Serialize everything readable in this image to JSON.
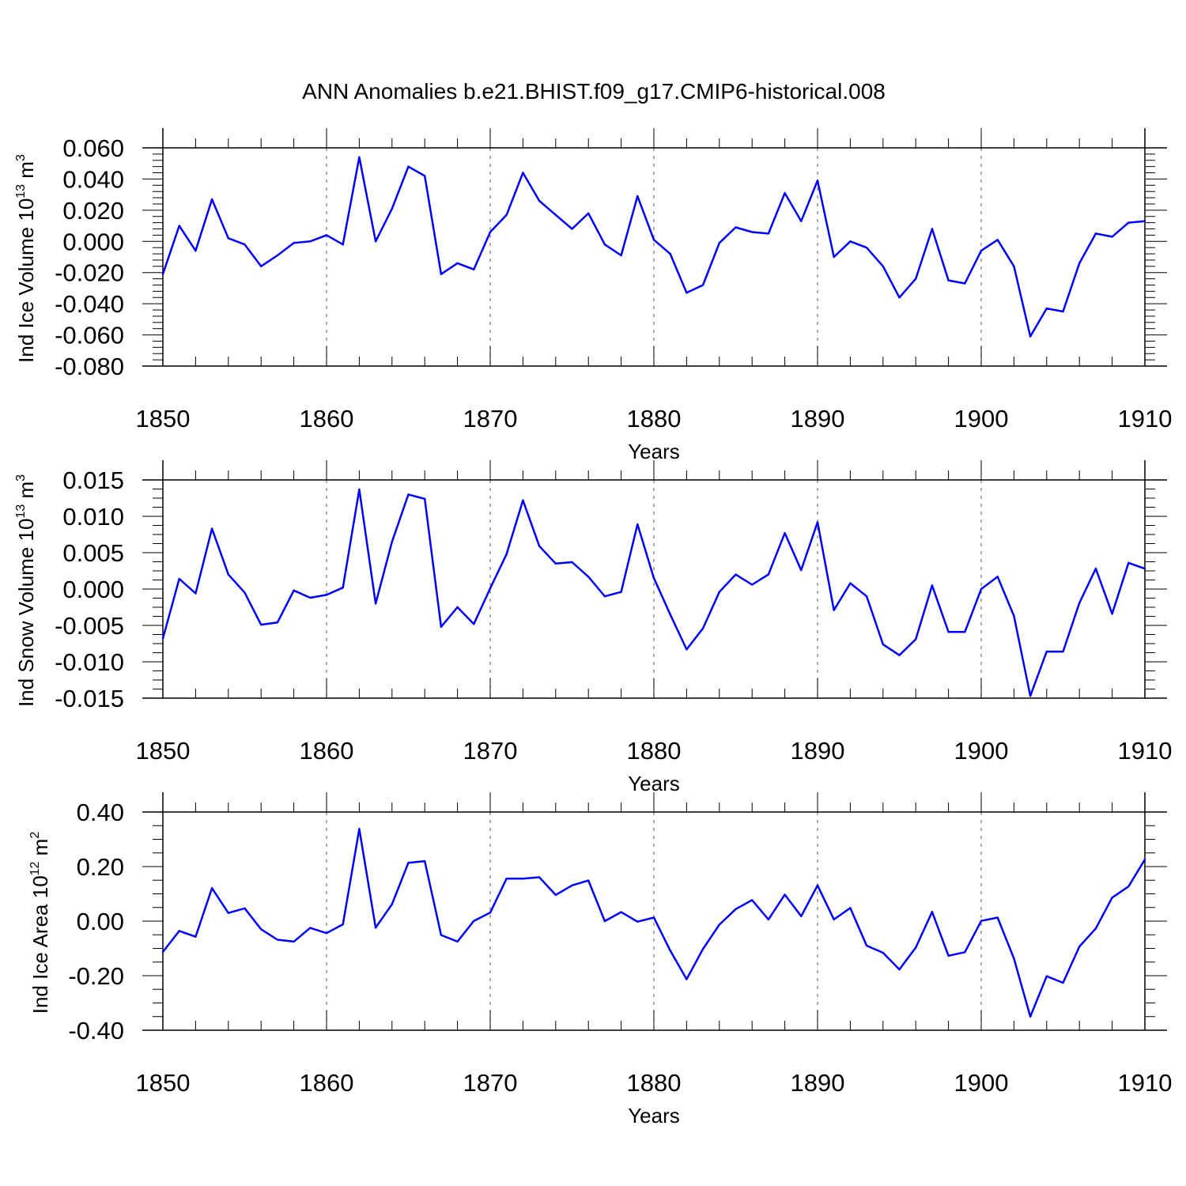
{
  "title": "ANN Anomalies b.e21.BHIST.f09_g17.CMIP6-historical.008",
  "colors": {
    "line": "#0000ff",
    "axis": "#000000",
    "grid": "#777777"
  },
  "chart_data": [
    {
      "type": "line",
      "ylabel_main": "Ind Ice Volume 10",
      "ylabel_exp": "13",
      "ylabel_unit": " m",
      "ylabel_unit_exp": "3",
      "xlabel": "Years",
      "xlim": [
        1850,
        1910
      ],
      "ylim": [
        -0.08,
        0.07
      ],
      "x_ticks": [
        1850,
        1860,
        1870,
        1880,
        1890,
        1900,
        1910
      ],
      "x_tick_labels": [
        "1850",
        "1860",
        "1870",
        "1880",
        "1890",
        "1900",
        "1910"
      ],
      "y_ticks": [
        0.06,
        0.04,
        0.02,
        0.0,
        -0.02,
        -0.04,
        -0.06,
        -0.08
      ],
      "y_tick_labels": [
        "0.060",
        "0.040",
        "0.020",
        "0.000",
        "-0.020",
        "-0.040",
        "-0.060",
        "-0.080"
      ],
      "grid": "vertical dashed at decades",
      "x": [
        1850,
        1851,
        1852,
        1853,
        1854,
        1855,
        1856,
        1857,
        1858,
        1859,
        1860,
        1861,
        1862,
        1863,
        1864,
        1865,
        1866,
        1867,
        1868,
        1869,
        1870,
        1871,
        1872,
        1873,
        1874,
        1875,
        1876,
        1877,
        1878,
        1879,
        1880,
        1881,
        1882,
        1883,
        1884,
        1885,
        1886,
        1887,
        1888,
        1889,
        1890,
        1891,
        1892,
        1893,
        1894,
        1895,
        1896,
        1897,
        1898,
        1899,
        1900,
        1901,
        1902,
        1903,
        1904,
        1905,
        1906,
        1907,
        1908,
        1909,
        1910
      ],
      "values": [
        -0.021,
        0.01,
        -0.006,
        0.027,
        0.002,
        -0.002,
        -0.016,
        -0.009,
        -0.001,
        0.0,
        0.004,
        -0.002,
        0.054,
        0.0,
        0.021,
        0.048,
        0.042,
        -0.021,
        -0.014,
        -0.018,
        0.006,
        0.017,
        0.044,
        0.026,
        0.017,
        0.008,
        0.018,
        -0.002,
        -0.009,
        0.029,
        0.001,
        -0.008,
        -0.033,
        -0.028,
        -0.001,
        0.009,
        0.006,
        0.005,
        0.031,
        0.013,
        0.039,
        -0.01,
        0.0,
        -0.004,
        -0.016,
        -0.036,
        -0.024,
        0.008,
        -0.025,
        -0.027,
        -0.006,
        0.001,
        -0.016,
        -0.061,
        -0.043,
        -0.045,
        -0.014,
        0.005,
        0.003,
        0.012,
        0.013
      ]
    },
    {
      "type": "line",
      "ylabel_main": "Ind Snow Volume 10",
      "ylabel_exp": "13",
      "ylabel_unit": " m",
      "ylabel_unit_exp": "3",
      "xlabel": "Years",
      "xlim": [
        1850,
        1910
      ],
      "ylim": [
        -0.015,
        0.0165
      ],
      "x_ticks": [
        1850,
        1860,
        1870,
        1880,
        1890,
        1900,
        1910
      ],
      "x_tick_labels": [
        "1850",
        "1860",
        "1870",
        "1880",
        "1890",
        "1900",
        "1910"
      ],
      "y_ticks": [
        0.015,
        0.01,
        0.005,
        0.0,
        -0.005,
        -0.01,
        -0.015
      ],
      "y_tick_labels": [
        "0.015",
        "0.010",
        "0.005",
        "0.000",
        "-0.005",
        "-0.010",
        "-0.015"
      ],
      "grid": "vertical dashed at decades",
      "x": [
        1850,
        1851,
        1852,
        1853,
        1854,
        1855,
        1856,
        1857,
        1858,
        1859,
        1860,
        1861,
        1862,
        1863,
        1864,
        1865,
        1866,
        1867,
        1868,
        1869,
        1870,
        1871,
        1872,
        1873,
        1874,
        1875,
        1876,
        1877,
        1878,
        1879,
        1880,
        1881,
        1882,
        1883,
        1884,
        1885,
        1886,
        1887,
        1888,
        1889,
        1890,
        1891,
        1892,
        1893,
        1894,
        1895,
        1896,
        1897,
        1898,
        1899,
        1900,
        1901,
        1902,
        1903,
        1904,
        1905,
        1906,
        1907,
        1908,
        1909,
        1910
      ],
      "values": [
        -0.0068,
        0.0014,
        -0.0006,
        0.0083,
        0.002,
        -0.0005,
        -0.0049,
        -0.0046,
        -0.0002,
        -0.0012,
        -0.0008,
        0.0002,
        0.0137,
        -0.002,
        0.0065,
        0.013,
        0.0124,
        -0.0052,
        -0.0025,
        -0.0048,
        0.0001,
        0.0048,
        0.0122,
        0.0059,
        0.0035,
        0.0037,
        0.0017,
        -0.001,
        -0.0004,
        0.0089,
        0.0015,
        -0.0035,
        -0.0083,
        -0.0054,
        -0.0004,
        0.002,
        0.0006,
        0.002,
        0.0077,
        0.0026,
        0.0092,
        -0.0029,
        0.0008,
        -0.001,
        -0.0076,
        -0.0091,
        -0.0069,
        0.0005,
        -0.0059,
        -0.0059,
        0.0,
        0.0017,
        -0.0037,
        -0.0147,
        -0.0086,
        -0.0086,
        -0.0019,
        0.0028,
        -0.0034,
        0.0036,
        0.0028
      ]
    },
    {
      "type": "line",
      "ylabel_main": "Ind Ice Area 10",
      "ylabel_exp": "12",
      "ylabel_unit": " m",
      "ylabel_unit_exp": "2",
      "xlabel": "Years",
      "xlim": [
        1850,
        1910
      ],
      "ylim": [
        -0.4,
        0.48
      ],
      "x_ticks": [
        1850,
        1860,
        1870,
        1880,
        1890,
        1900,
        1910
      ],
      "x_tick_labels": [
        "1850",
        "1860",
        "1870",
        "1880",
        "1890",
        "1900",
        "1910"
      ],
      "y_ticks": [
        0.4,
        0.2,
        0.0,
        -0.2,
        -0.4
      ],
      "y_tick_labels": [
        "0.40",
        "0.20",
        "0.00",
        "-0.20",
        "-0.40"
      ],
      "grid": "vertical dashed at decades",
      "x": [
        1850,
        1851,
        1852,
        1853,
        1854,
        1855,
        1856,
        1857,
        1858,
        1859,
        1860,
        1861,
        1862,
        1863,
        1864,
        1865,
        1866,
        1867,
        1868,
        1869,
        1870,
        1871,
        1872,
        1873,
        1874,
        1875,
        1876,
        1877,
        1878,
        1879,
        1880,
        1881,
        1882,
        1883,
        1884,
        1885,
        1886,
        1887,
        1888,
        1889,
        1890,
        1891,
        1892,
        1893,
        1894,
        1895,
        1896,
        1897,
        1898,
        1899,
        1900,
        1901,
        1902,
        1903,
        1904,
        1905,
        1906,
        1907,
        1908,
        1909,
        1910
      ],
      "values": [
        -0.113,
        -0.036,
        -0.057,
        0.121,
        0.03,
        0.047,
        -0.03,
        -0.068,
        -0.075,
        -0.025,
        -0.044,
        -0.012,
        0.338,
        -0.024,
        0.062,
        0.214,
        0.22,
        -0.051,
        -0.075,
        0.001,
        0.031,
        0.156,
        0.156,
        0.161,
        0.096,
        0.131,
        0.149,
        0.0,
        0.033,
        -0.002,
        0.013,
        -0.108,
        -0.213,
        -0.102,
        -0.013,
        0.044,
        0.077,
        0.006,
        0.097,
        0.018,
        0.131,
        0.006,
        0.048,
        -0.09,
        -0.116,
        -0.177,
        -0.097,
        0.034,
        -0.127,
        -0.114,
        0.001,
        0.013,
        -0.137,
        -0.35,
        -0.202,
        -0.226,
        -0.093,
        -0.027,
        0.086,
        0.127,
        0.226
      ]
    }
  ]
}
